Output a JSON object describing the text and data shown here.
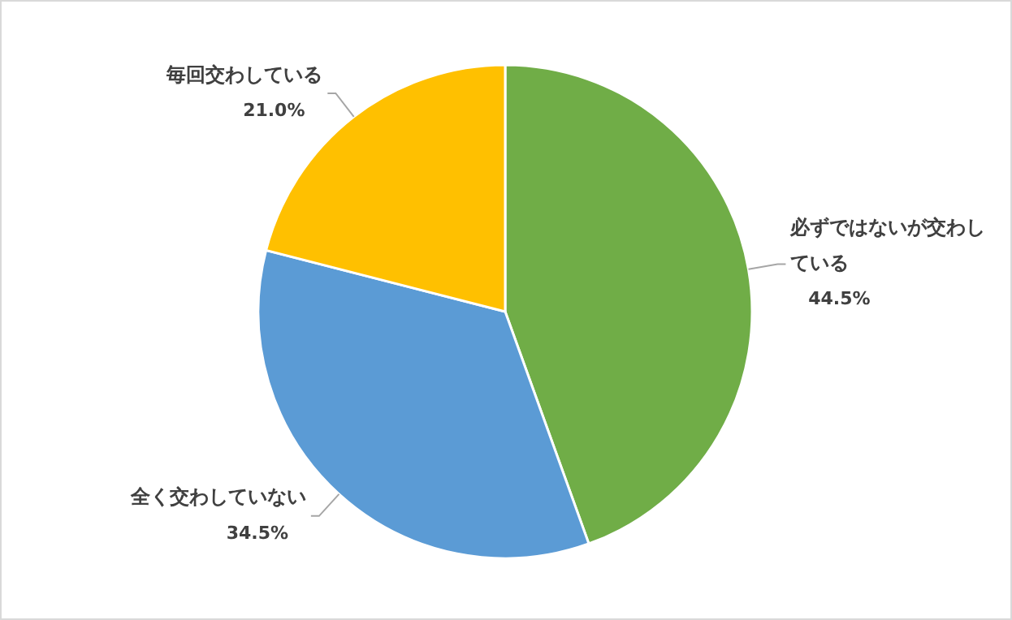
{
  "chart_data": {
    "type": "pie",
    "categories": [
      "必ずではないが交わしている",
      "全く交わしていない",
      "毎回交わしている"
    ],
    "values": [
      44.5,
      34.5,
      21.0
    ],
    "colors": [
      "#70ad47",
      "#5b9bd5",
      "#ffc000"
    ],
    "value_labels": [
      "44.5%",
      "34.5%",
      "21.0%"
    ]
  }
}
